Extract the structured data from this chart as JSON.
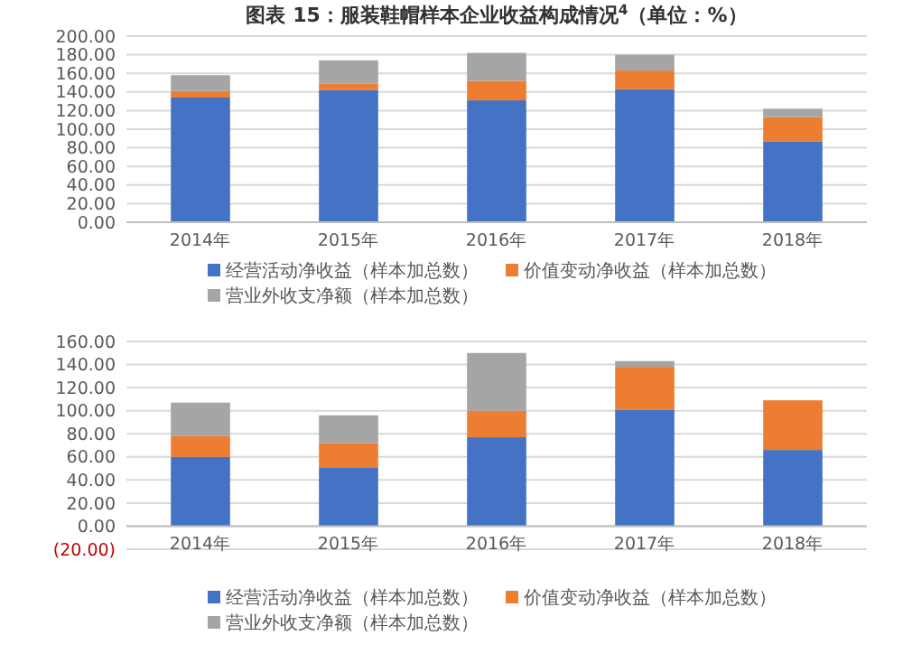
{
  "chart_data": [
    {
      "type": "bar",
      "title": "图表 15：服装鞋帽样本企业收益构成情况$^{4}$（单位：%）",
      "stacked": true,
      "categories": [
        "2014年",
        "2015年",
        "2016年",
        "2017年",
        "2018年"
      ],
      "series": [
        {
          "name": "经营活动净收益（样本加总数）",
          "color": "#4472c4",
          "values": [
            134,
            142,
            131,
            143,
            87
          ]
        },
        {
          "name": "价值变动净收益（样本加总数）",
          "color": "#ed7d31",
          "values": [
            7,
            7,
            21,
            20,
            26
          ]
        },
        {
          "name": "营业外收支净额（样本加总数）",
          "color": "#a5a5a5",
          "values": [
            17,
            25,
            30,
            17,
            9
          ]
        }
      ],
      "ylim": [
        0,
        200
      ],
      "yticks": [
        {
          "value": 0,
          "label": "0.00"
        },
        {
          "value": 20,
          "label": "20.00"
        },
        {
          "value": 40,
          "label": "40.00"
        },
        {
          "value": 60,
          "label": "60.00"
        },
        {
          "value": 80,
          "label": "80.00"
        },
        {
          "value": 100,
          "label": "100.00"
        },
        {
          "value": 120,
          "label": "120.00"
        },
        {
          "value": 140,
          "label": "140.00"
        },
        {
          "value": 160,
          "label": "160.00"
        },
        {
          "value": 180,
          "label": "180.00"
        },
        {
          "value": 200,
          "label": "200.00"
        }
      ],
      "grid": "y",
      "legend": "bottom"
    },
    {
      "type": "bar",
      "stacked": true,
      "categories": [
        "2014年",
        "2015年",
        "2016年",
        "2017年",
        "2018年"
      ],
      "series": [
        {
          "name": "经营活动净收益（样本加总数）",
          "color": "#4472c4",
          "values": [
            60,
            51,
            77,
            101,
            66
          ]
        },
        {
          "name": "价值变动净收益（样本加总数）",
          "color": "#ed7d31",
          "values": [
            18,
            21,
            23,
            37,
            43
          ]
        },
        {
          "name": "营业外收支净额（样本加总数）",
          "color": "#a5a5a5",
          "values": [
            29,
            24,
            50,
            5,
            0
          ]
        }
      ],
      "ylim": [
        -20,
        160
      ],
      "yticks": [
        {
          "value": -20,
          "label": "(20.00)"
        },
        {
          "value": 0,
          "label": "0.00"
        },
        {
          "value": 20,
          "label": "20.00"
        },
        {
          "value": 40,
          "label": "40.00"
        },
        {
          "value": 60,
          "label": "60.00"
        },
        {
          "value": 80,
          "label": "80.00"
        },
        {
          "value": 100,
          "label": "100.00"
        },
        {
          "value": 120,
          "label": "120.00"
        },
        {
          "value": 140,
          "label": "140.00"
        },
        {
          "value": 160,
          "label": "160.00"
        }
      ],
      "grid": "y",
      "legend": "bottom"
    }
  ]
}
